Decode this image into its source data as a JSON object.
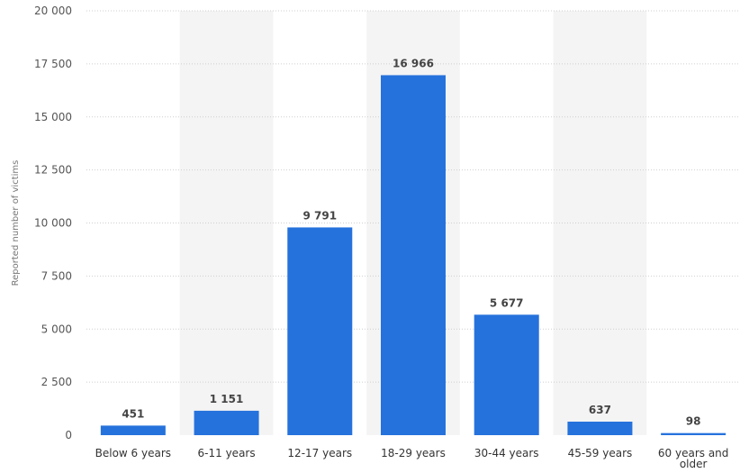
{
  "chart_data": {
    "type": "bar",
    "categories": [
      "Below 6 years",
      "6-11 years",
      "12-17 years",
      "18-29 years",
      "30-44 years",
      "45-59 years",
      "60 years and older"
    ],
    "values": [
      451,
      1151,
      9791,
      16966,
      5677,
      637,
      98
    ],
    "value_labels": [
      "451",
      "1 151",
      "9 791",
      "16 966",
      "5 677",
      "637",
      "98"
    ],
    "ylabel": "Reported number of victims",
    "xlabel": "",
    "title": "",
    "ylim": [
      0,
      20000
    ],
    "yticks": [
      0,
      2500,
      5000,
      7500,
      10000,
      12500,
      15000,
      17500,
      20000
    ],
    "ytick_labels": [
      "0",
      "2 500",
      "5 000",
      "7 500",
      "10 000",
      "12 500",
      "15 000",
      "17 500",
      "20 000"
    ],
    "grid": true,
    "legend": "none",
    "colors": {
      "bar": "#2672dc",
      "band": "#f4f4f4",
      "grid": "#cfcfcf"
    }
  }
}
